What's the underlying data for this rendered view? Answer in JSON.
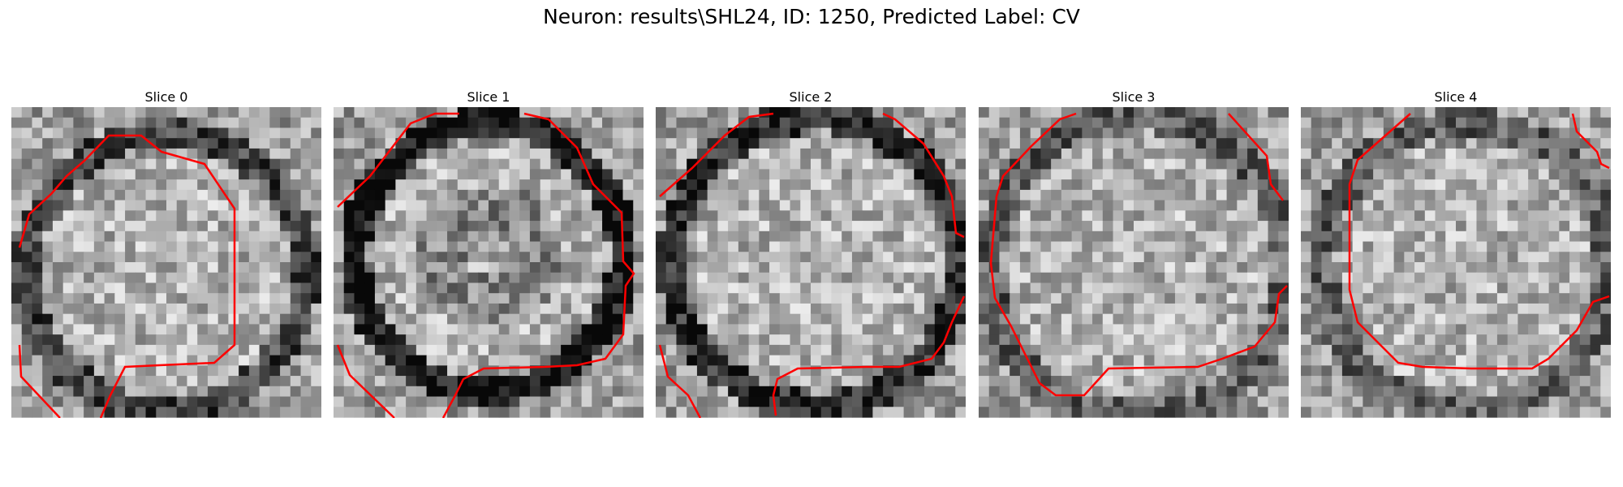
{
  "figure": {
    "title": "Neuron: results\\SHL24, ID: 1250, Predicted Label: CV"
  },
  "style": {
    "contour_color": "#ff0000",
    "image_colormap": "gray"
  },
  "slices": [
    {
      "title": "Slice 0"
    },
    {
      "title": "Slice 1"
    },
    {
      "title": "Slice 2"
    },
    {
      "title": "Slice 3"
    },
    {
      "title": "Slice 4"
    }
  ]
}
